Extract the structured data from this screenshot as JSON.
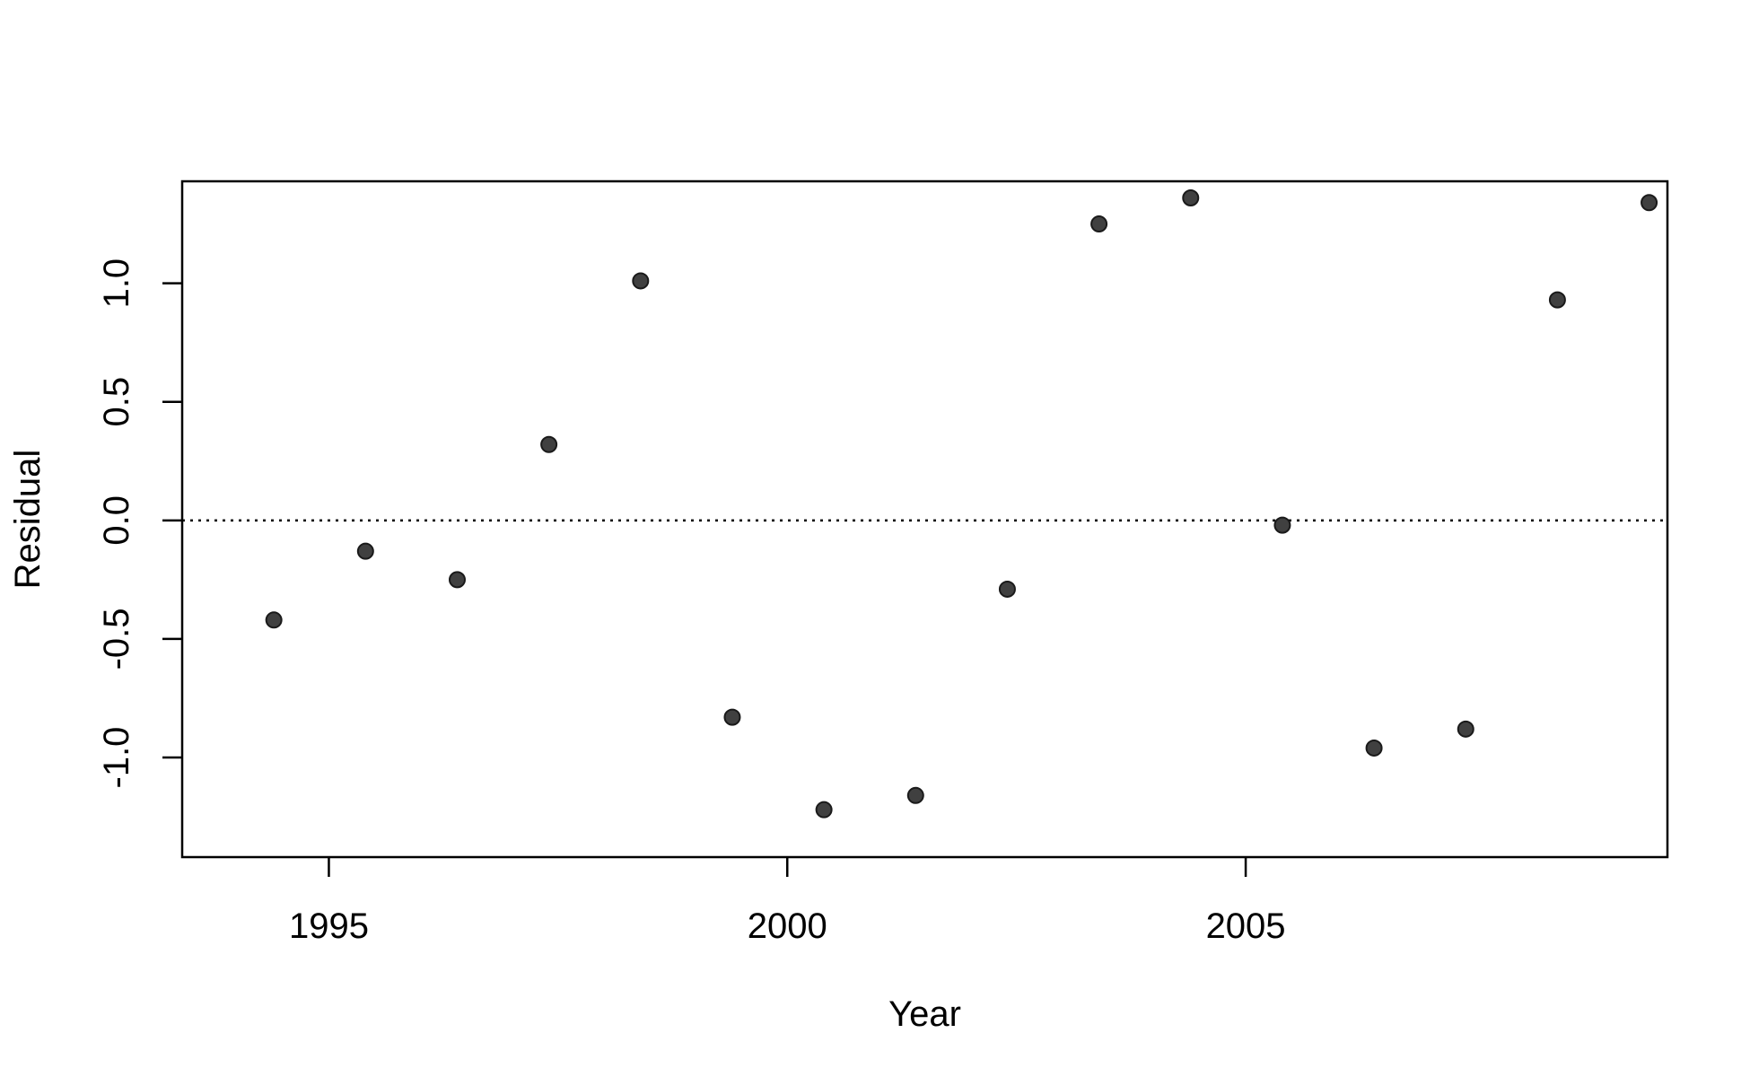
{
  "chart_data": {
    "type": "scatter",
    "title": "",
    "xlabel": "Year",
    "ylabel": "Residual",
    "x": [
      1994.4,
      1995.4,
      1996.4,
      1997.4,
      1998.4,
      1999.4,
      2000.4,
      2001.4,
      2002.4,
      2003.4,
      2004.4,
      2005.4,
      2006.4,
      2007.4,
      2008.4,
      2009.4
    ],
    "y": [
      -0.42,
      -0.13,
      -0.25,
      0.32,
      1.01,
      -0.83,
      -1.22,
      -1.16,
      -0.29,
      1.25,
      1.36,
      -0.02,
      -0.96,
      -0.88,
      0.93,
      1.34
    ],
    "xlim": [
      1993.4,
      2009.6
    ],
    "ylim": [
      -1.42,
      1.43
    ],
    "xticks": [
      1995,
      2000,
      2005
    ],
    "xtick_labels": [
      "1995",
      "2000",
      "2005"
    ],
    "yticks": [
      -1.0,
      -0.5,
      0.0,
      0.5,
      1.0
    ],
    "ytick_labels": [
      "-1.0",
      "-0.5",
      "0.0",
      "0.5",
      "1.0"
    ],
    "reference_line": {
      "y": 0,
      "style": "dotted"
    },
    "grid": false,
    "legend": "none",
    "marker_color": "#404040",
    "marker_edge_color": "#1a1a1a"
  }
}
